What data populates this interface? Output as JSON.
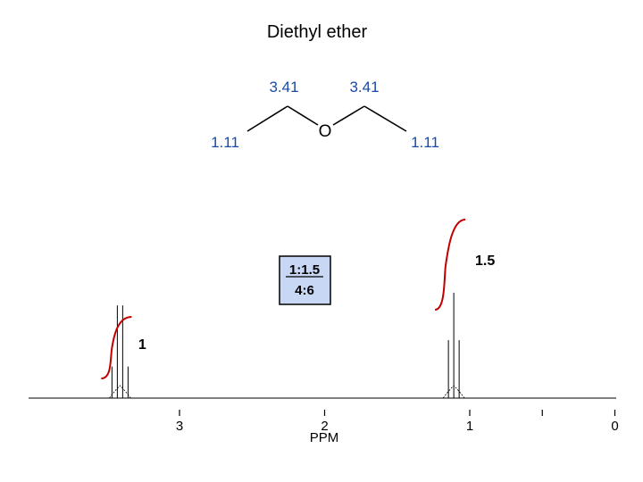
{
  "chart_data": {
    "type": "line",
    "title": "Diethyl ether",
    "xlabel": "PPM",
    "ylabel": "",
    "x_axis_reversed": true,
    "xlim": [
      3.3,
      -0.05
    ],
    "x_ticks": [
      "3",
      "2",
      "1",
      "0"
    ],
    "x_tick_values": [
      3,
      2,
      1,
      0
    ],
    "minor_tick_values": [
      0.5
    ],
    "peaks": [
      {
        "center_ppm": 3.41,
        "multiplet": "quartet",
        "line_heights": [
          0.3,
          0.88,
          0.88,
          0.3
        ],
        "integral": "1"
      },
      {
        "center_ppm": 1.11,
        "multiplet": "triplet",
        "line_heights": [
          0.55,
          1.0,
          0.55
        ],
        "integral": "1.5"
      }
    ],
    "ratio_box": [
      "1:1.5",
      "4:6"
    ],
    "colors": {
      "integral": "#c00000",
      "shift_label": "#1a4aa8",
      "ratio_box_fill": "#c8d8f4",
      "spectrum": "#000000"
    }
  },
  "structure": {
    "atom": "O",
    "shifts": {
      "ch2_left": "3.41",
      "ch2_right": "3.41",
      "ch3_left": "1.11",
      "ch3_right": "1.11"
    }
  }
}
